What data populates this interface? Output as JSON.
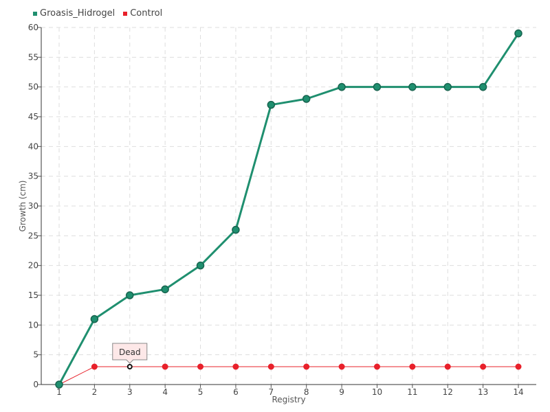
{
  "chart_data": {
    "type": "line",
    "xlabel": "Registry",
    "ylabel": "Growth (cm)",
    "categories": [
      "1",
      "2",
      "3",
      "4",
      "5",
      "6",
      "7",
      "8",
      "9",
      "10",
      "11",
      "12",
      "13",
      "14"
    ],
    "ylim": [
      0,
      60
    ],
    "yticks": [
      0,
      5,
      10,
      15,
      20,
      25,
      30,
      35,
      40,
      45,
      50,
      55,
      60
    ],
    "grid": true,
    "legend_position": "top-left",
    "series": [
      {
        "name": "Groasis_Hidrogel",
        "color": "#1f8f6f",
        "values": [
          0,
          11,
          15,
          16,
          20,
          26,
          47,
          48,
          50,
          50,
          50,
          50,
          50,
          59
        ]
      },
      {
        "name": "Control",
        "color": "#e8202a",
        "values": [
          0,
          3,
          3,
          3,
          3,
          3,
          3,
          3,
          3,
          3,
          3,
          3,
          3,
          3
        ]
      }
    ],
    "annotations": [
      {
        "text": "Dead",
        "series": "Control",
        "x": "3"
      }
    ]
  }
}
